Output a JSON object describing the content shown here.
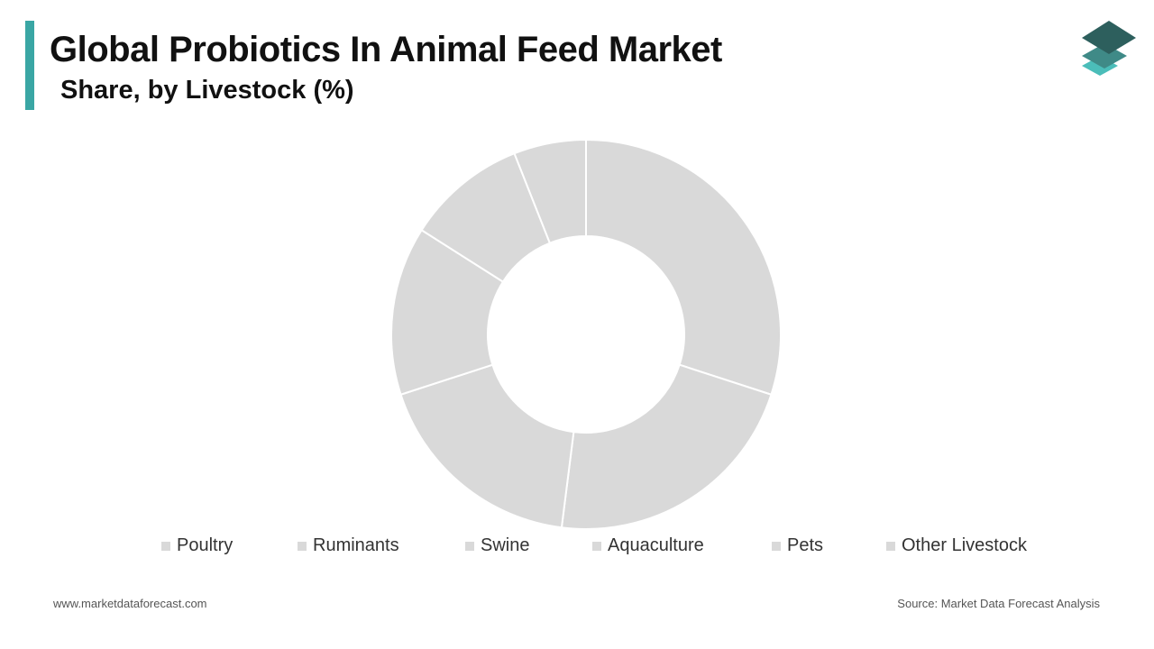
{
  "header": {
    "title": "Global Probiotics In Animal Feed Market",
    "subtitle": "Share, by Livestock (%)",
    "accent_color": "#3aa6a4"
  },
  "logo": {
    "icon": "stacked-layers-icon",
    "colors": [
      "#2d5f5d",
      "#3f8a87",
      "#4bbdb9"
    ]
  },
  "chart_data": {
    "type": "pie",
    "style": "donut",
    "title": "",
    "categories": [
      "Poultry",
      "Ruminants",
      "Swine",
      "Aquaculture",
      "Pets",
      "Other Livestock"
    ],
    "values": [
      30,
      22,
      18,
      14,
      10,
      6
    ],
    "slice_color": "#d9d9d9",
    "start_angle": "12 o'clock",
    "direction": "clockwise",
    "legend_position": "bottom"
  },
  "footer": {
    "url": "www.marketdataforecast.com",
    "source": "Source: Market Data Forecast Analysis"
  }
}
